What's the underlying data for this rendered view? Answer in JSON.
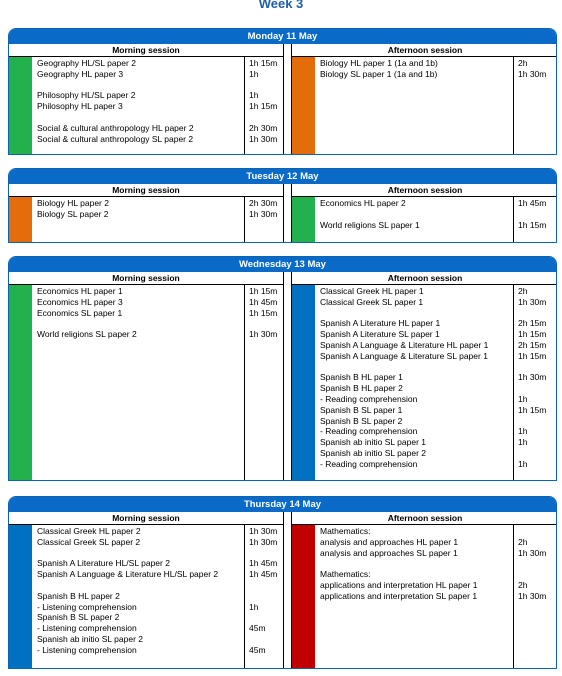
{
  "title": "Week 3",
  "days": [
    {
      "title": "Monday 11 May",
      "morning": {
        "heading": "Morning session",
        "color": "#22b14c",
        "groups": [
          [
            {
              "subject": "Geography HL/SL paper 2",
              "duration": "1h 15m"
            },
            {
              "subject": "Geography HL paper 3",
              "duration": "1h"
            }
          ],
          [
            {
              "subject": "Philosophy HL/SL paper 2",
              "duration": "1h"
            },
            {
              "subject": "Philosophy HL paper 3",
              "duration": "1h 15m"
            }
          ],
          [
            {
              "subject": "Social & cultural anthropology HL paper 2",
              "duration": "2h 30m"
            },
            {
              "subject": "Social & cultural anthropology SL paper 2",
              "duration": "1h 30m"
            }
          ]
        ]
      },
      "afternoon": {
        "heading": "Afternoon session",
        "color": "#e46c0a",
        "groups": [
          [
            {
              "subject": "Biology HL paper 1 (1a and 1b)",
              "duration": "2h"
            },
            {
              "subject": "Biology SL paper 1 (1a and 1b)",
              "duration": "1h 30m"
            }
          ]
        ]
      }
    },
    {
      "title": "Tuesday 12 May",
      "morning": {
        "heading": "Morning session",
        "color": "#e46c0a",
        "groups": [
          [
            {
              "subject": "Biology HL paper 2",
              "duration": "2h 30m"
            },
            {
              "subject": "Biology SL paper 2",
              "duration": "1h 30m"
            }
          ]
        ]
      },
      "afternoon": {
        "heading": "Afternoon session",
        "color": "#22b14c",
        "groups": [
          [
            {
              "subject": "Economics HL paper 2",
              "duration": "1h 45m"
            }
          ],
          [
            {
              "subject": "World religions SL paper 1",
              "duration": "1h 15m"
            }
          ]
        ]
      }
    },
    {
      "title": "Wednesday 13 May",
      "morning": {
        "heading": "Morning session",
        "color": "#22b14c",
        "groups": [
          [
            {
              "subject": "Economics HL paper 1",
              "duration": "1h 15m"
            },
            {
              "subject": "Economics HL paper 3",
              "duration": "1h 45m"
            },
            {
              "subject": "Economics SL paper 1",
              "duration": "1h 15m"
            }
          ],
          [
            {
              "subject": "World religions SL paper 2",
              "duration": "1h 30m"
            }
          ]
        ]
      },
      "afternoon": {
        "heading": "Afternoon session",
        "color": "#0070c0",
        "groups": [
          [
            {
              "subject": "Classical Greek HL paper 1",
              "duration": "2h"
            },
            {
              "subject": "Classical Greek SL paper 1",
              "duration": "1h 30m"
            }
          ],
          [
            {
              "subject": "Spanish A Literature HL paper 1",
              "duration": "2h 15m"
            },
            {
              "subject": "Spanish A Literature SL paper 1",
              "duration": "1h 15m"
            },
            {
              "subject": "Spanish A Language & Literature HL paper 1",
              "duration": "2h 15m"
            },
            {
              "subject": "Spanish A Language & Literature SL paper 1",
              "duration": "1h 15m"
            }
          ],
          [
            {
              "subject": "Spanish B HL paper 1",
              "duration": "1h 30m"
            },
            {
              "subject": "Spanish B HL paper 2"
            },
            {
              "subject": "- Reading comprehension",
              "duration": "1h"
            },
            {
              "subject": "Spanish B SL paper 1",
              "duration": "1h 15m"
            },
            {
              "subject": "Spanish B SL paper 2"
            },
            {
              "subject": "- Reading comprehension",
              "duration": "1h"
            },
            {
              "subject": "Spanish ab initio SL paper 1",
              "duration": "1h"
            },
            {
              "subject": "Spanish ab initio SL paper 2"
            },
            {
              "subject": "- Reading comprehension",
              "duration": "1h"
            }
          ]
        ]
      }
    },
    {
      "title": "Thursday 14 May",
      "morning": {
        "heading": "Morning session",
        "color": "#0070c0",
        "groups": [
          [
            {
              "subject": "Classical Greek HL paper 2",
              "duration": "1h 30m"
            },
            {
              "subject": "Classical Greek SL paper 2",
              "duration": "1h 30m"
            }
          ],
          [
            {
              "subject": "Spanish A Literature HL/SL paper 2",
              "duration": "1h 45m"
            },
            {
              "subject": "Spanish A Language & Literature HL/SL paper 2",
              "duration": "1h 45m"
            }
          ],
          [
            {
              "subject": "Spanish B HL paper 2"
            },
            {
              "subject": "- Listening comprehension",
              "duration": "1h"
            },
            {
              "subject": "Spanish B SL paper 2"
            },
            {
              "subject": "- Listening comprehension",
              "duration": "45m"
            },
            {
              "subject": "Spanish ab initio SL paper 2"
            },
            {
              "subject": "- Listening comprehension",
              "duration": "45m"
            }
          ]
        ]
      },
      "afternoon": {
        "heading": "Afternoon session",
        "color": "#c00000",
        "groups": [
          [
            {
              "subject": "Mathematics:"
            },
            {
              "subject": "analysis and approaches HL paper 1",
              "duration": "2h"
            },
            {
              "subject": "analysis and approaches SL paper 1",
              "duration": "1h 30m"
            }
          ],
          [
            {
              "subject": "Mathematics:"
            },
            {
              "subject": "applications and interpretation HL paper 1",
              "duration": "2h"
            },
            {
              "subject": "applications and interpretation SL paper 1",
              "duration": "1h 30m"
            }
          ]
        ]
      }
    }
  ]
}
